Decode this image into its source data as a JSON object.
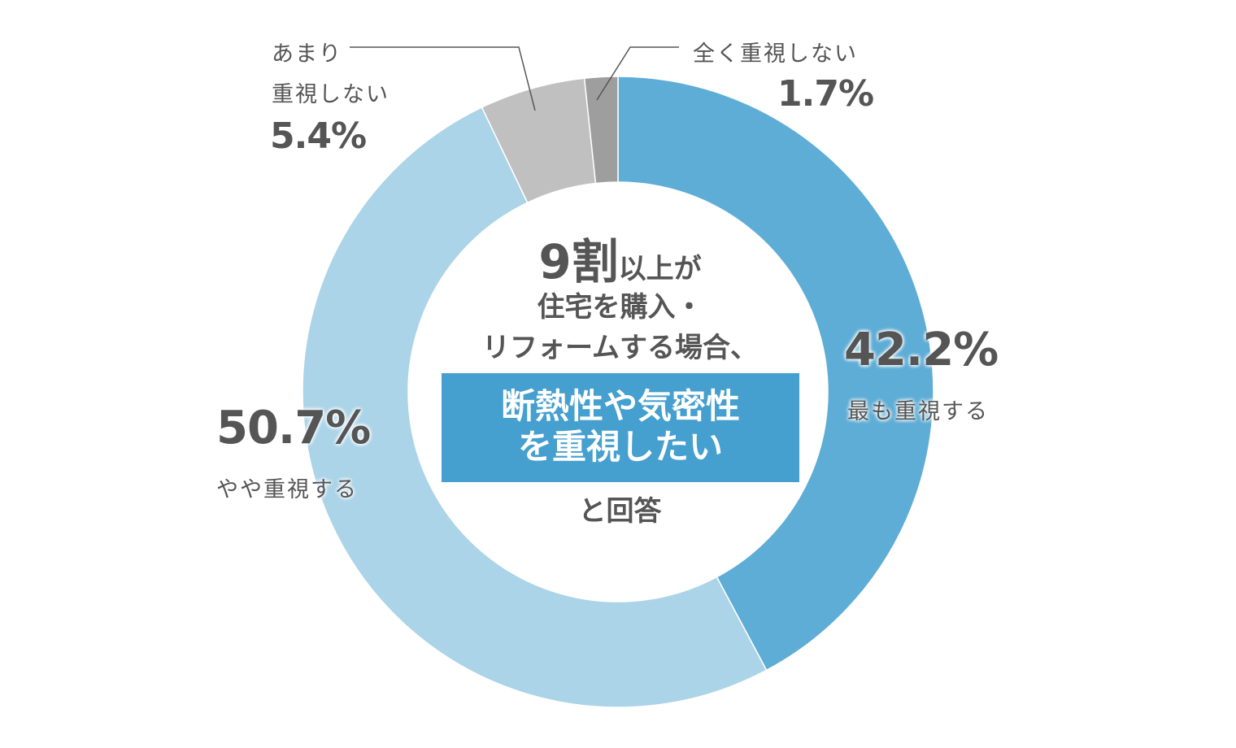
{
  "chart_data": {
    "type": "pie",
    "donut": true,
    "slices": [
      {
        "label": "最も重視する",
        "value": 42.2,
        "display": "42.2%",
        "color": "#5eadd6"
      },
      {
        "label": "やや重視する",
        "value": 50.7,
        "display": "50.7%",
        "color": "#abd4e8"
      },
      {
        "label_lines": [
          "あまり",
          "重視しない"
        ],
        "label": "あまり重視しない",
        "value": 5.4,
        "display": "5.4%",
        "color": "#c0c0c0"
      },
      {
        "label": "全く重視しない",
        "value": 1.7,
        "display": "1.7%",
        "color": "#9e9e9e"
      }
    ],
    "direction": "clockwise from top"
  },
  "center": {
    "big": "9割",
    "line1_rest": "以上が",
    "line2": "住宅を購入・",
    "line3": "リフォームする場合、",
    "highlight1": "断熱性や気密性",
    "highlight2": "を重視したい",
    "tail": "と回答",
    "highlight_color": "#459fcf"
  }
}
